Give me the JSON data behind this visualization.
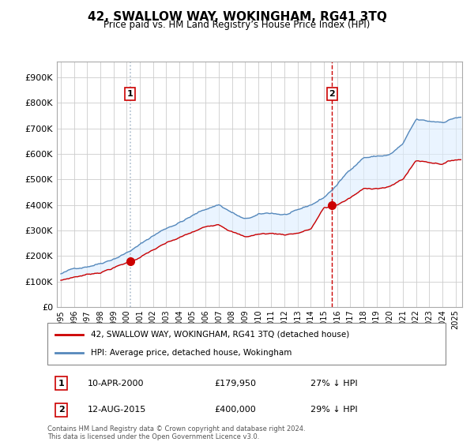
{
  "title": "42, SWALLOW WAY, WOKINGHAM, RG41 3TQ",
  "subtitle": "Price paid vs. HM Land Registry’s House Price Index (HPI)",
  "ylabel_ticks": [
    "£0",
    "£100K",
    "£200K",
    "£300K",
    "£400K",
    "£500K",
    "£600K",
    "£700K",
    "£800K",
    "£900K"
  ],
  "ytick_values": [
    0,
    100000,
    200000,
    300000,
    400000,
    500000,
    600000,
    700000,
    800000,
    900000
  ],
  "ylim": [
    0,
    960000
  ],
  "xlim_start": 1994.7,
  "xlim_end": 2025.5,
  "sale1_date": 2000.27,
  "sale1_price": 179950,
  "sale2_date": 2015.61,
  "sale2_price": 400000,
  "vline1_style": "dotted",
  "vline2_style": "dashed",
  "legend_line1": "42, SWALLOW WAY, WOKINGHAM, RG41 3TQ (detached house)",
  "legend_line2": "HPI: Average price, detached house, Wokingham",
  "ann1_label": "1",
  "ann1_date": "10-APR-2000",
  "ann1_price": "£179,950",
  "ann1_hpi": "27% ↓ HPI",
  "ann2_label": "2",
  "ann2_date": "12-AUG-2015",
  "ann2_price": "£400,000",
  "ann2_hpi": "29% ↓ HPI",
  "footer": "Contains HM Land Registry data © Crown copyright and database right 2024.\nThis data is licensed under the Open Government Licence v3.0.",
  "line_color_red": "#cc0000",
  "line_color_blue": "#5588bb",
  "fill_color_blue": "#ddeeff",
  "vline1_color": "#aabbcc",
  "vline2_color": "#cc0000",
  "background_color": "#ffffff",
  "grid_color": "#cccccc",
  "hpi_keypoints_x": [
    1995,
    1996,
    1997,
    1998,
    1999,
    2000,
    2001,
    2002,
    2003,
    2004,
    2005,
    2006,
    2007,
    2008,
    2009,
    2010,
    2011,
    2012,
    2013,
    2014,
    2015,
    2016,
    2017,
    2018,
    2019,
    2020,
    2021,
    2022,
    2023,
    2024,
    2025
  ],
  "hpi_keypoints_y": [
    130000,
    148000,
    162000,
    178000,
    200000,
    225000,
    255000,
    290000,
    320000,
    345000,
    370000,
    395000,
    415000,
    385000,
    355000,
    370000,
    375000,
    370000,
    380000,
    400000,
    430000,
    480000,
    540000,
    590000,
    595000,
    600000,
    640000,
    730000,
    720000,
    720000,
    740000
  ],
  "red_keypoints_x": [
    1995,
    1996,
    1997,
    1998,
    1999,
    2000,
    2001,
    2002,
    2003,
    2004,
    2005,
    2006,
    2007,
    2008,
    2009,
    2010,
    2011,
    2012,
    2013,
    2014,
    2015,
    2016,
    2017,
    2018,
    2019,
    2020,
    2021,
    2022,
    2023,
    2024,
    2025
  ],
  "red_keypoints_y": [
    97000,
    110000,
    120000,
    130000,
    148000,
    165000,
    187000,
    213000,
    235000,
    253000,
    272000,
    290000,
    305000,
    283000,
    261000,
    272000,
    275000,
    272000,
    279000,
    294000,
    370000,
    375000,
    400000,
    430000,
    436000,
    440000,
    468000,
    535000,
    530000,
    528000,
    543000
  ]
}
